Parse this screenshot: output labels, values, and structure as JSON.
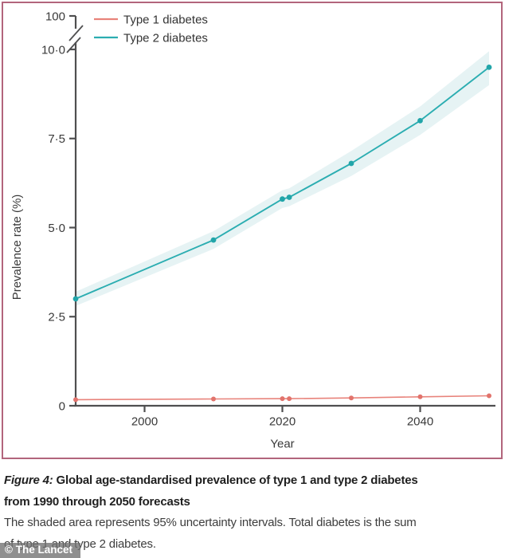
{
  "page": {
    "panel_border_color": "#b2657c",
    "background_color": "#ffffff",
    "axis_color": "#4f4f50",
    "text_color": "#3a3a3a"
  },
  "chart_data": {
    "type": "line",
    "title": "",
    "xlabel": "Year",
    "ylabel": "Prevalence rate (%)",
    "x_range": [
      1990,
      2050
    ],
    "y_range": [
      0,
      10
    ],
    "x_ticks": [
      2000,
      2020,
      2040
    ],
    "y_ticks": [
      0,
      2.5,
      5,
      7.5,
      10
    ],
    "y_tick_labels": [
      "0",
      "2·5",
      "5·0",
      "7·5",
      "10·0"
    ],
    "axis_break": {
      "upper_label": "100",
      "note": "y-axis broken between 10 and 100"
    },
    "grid": false,
    "legend_position": "top-left",
    "series": [
      {
        "name": "Type 1 diabetes",
        "color": "#e8837b",
        "marker_color": "#e2736c",
        "x": [
          1990,
          2010,
          2020,
          2021,
          2030,
          2040,
          2050
        ],
        "y": [
          0.17,
          0.19,
          0.2,
          0.2,
          0.22,
          0.25,
          0.28
        ]
      },
      {
        "name": "Type 2 diabetes",
        "color": "#2badb1",
        "marker_color": "#21a5a9",
        "band_color": "#d9edee",
        "x": [
          1990,
          2010,
          2020,
          2021,
          2030,
          2040,
          2050
        ],
        "y": [
          3.0,
          4.65,
          5.8,
          5.85,
          6.8,
          8.0,
          9.5
        ],
        "band_lower": [
          2.8,
          4.4,
          5.55,
          5.6,
          6.45,
          7.6,
          9.0
        ],
        "band_upper": [
          3.2,
          4.9,
          6.05,
          6.1,
          7.15,
          8.4,
          9.95
        ]
      }
    ]
  },
  "caption": {
    "figure_label": "Figure 4:",
    "title_line1": " Global age-standardised prevalence of type 1 and type 2 diabetes",
    "title_line2": "from 1990 through 2050 forecasts",
    "body_line1": "The shaded area represents 95% uncertainty intervals. Total diabetes is the sum",
    "body_line2": "of type 1 and type 2 diabetes."
  },
  "watermark": {
    "text": "© The Lancet"
  }
}
